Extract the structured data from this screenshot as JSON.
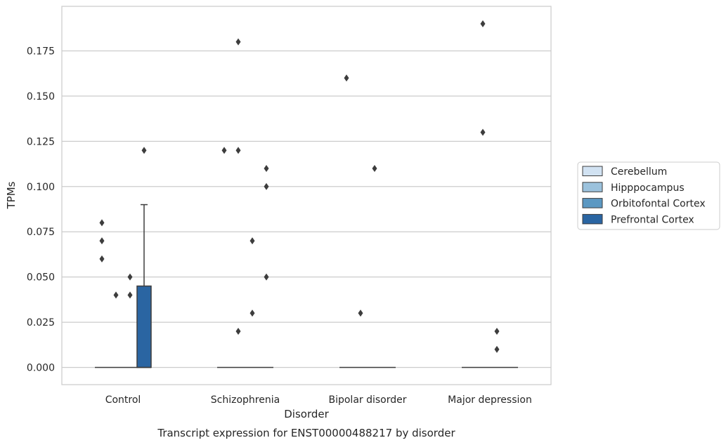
{
  "chart_data": {
    "type": "box",
    "xlabel": "Disorder",
    "ylabel": "TPMs",
    "caption": "Transcript expression for ENST00000488217 by disorder",
    "categories": [
      "Control",
      "Schizophrenia",
      "Bipolar disorder",
      "Major depression"
    ],
    "ylim": [
      -0.0095,
      0.199
    ],
    "yticks": [
      0.0,
      0.025,
      0.05,
      0.075,
      0.1,
      0.125,
      0.15,
      0.175
    ],
    "ytick_labels": [
      "0.000",
      "0.025",
      "0.050",
      "0.075",
      "0.100",
      "0.125",
      "0.150",
      "0.175"
    ],
    "grid": "horizontal",
    "legend_position": "right",
    "series": [
      {
        "name": "Cerebellum",
        "color": "#d1e2f2",
        "boxes": [
          {
            "category": "Control",
            "q1": 0,
            "median": 0,
            "q3": 0,
            "whisker_low": 0,
            "whisker_high": 0,
            "outliers": [
              0.06,
              0.07,
              0.08
            ]
          },
          {
            "category": "Schizophrenia",
            "q1": 0,
            "median": 0,
            "q3": 0,
            "whisker_low": 0,
            "whisker_high": 0,
            "outliers": [
              0.12
            ]
          },
          {
            "category": "Bipolar disorder",
            "q1": 0,
            "median": 0,
            "q3": 0,
            "whisker_low": 0,
            "whisker_high": 0,
            "outliers": [
              0.16
            ]
          },
          {
            "category": "Major depression",
            "q1": 0,
            "median": 0,
            "q3": 0,
            "whisker_low": 0,
            "whisker_high": 0,
            "outliers": []
          }
        ]
      },
      {
        "name": "Hipppocampus",
        "color": "#9bc2dd",
        "boxes": [
          {
            "category": "Control",
            "q1": 0,
            "median": 0,
            "q3": 0,
            "whisker_low": 0,
            "whisker_high": 0,
            "outliers": [
              0.04
            ]
          },
          {
            "category": "Schizophrenia",
            "q1": 0,
            "median": 0,
            "q3": 0,
            "whisker_low": 0,
            "whisker_high": 0,
            "outliers": [
              0.02,
              0.12,
              0.18
            ]
          },
          {
            "category": "Bipolar disorder",
            "q1": 0,
            "median": 0,
            "q3": 0,
            "whisker_low": 0,
            "whisker_high": 0,
            "outliers": [
              0.03
            ]
          },
          {
            "category": "Major depression",
            "q1": 0,
            "median": 0,
            "q3": 0,
            "whisker_low": 0,
            "whisker_high": 0,
            "outliers": [
              0.13,
              0.19
            ]
          }
        ]
      },
      {
        "name": "Orbitofontal Cortex",
        "color": "#5b98c2",
        "boxes": [
          {
            "category": "Control",
            "q1": 0,
            "median": 0,
            "q3": 0,
            "whisker_low": 0,
            "whisker_high": 0,
            "outliers": [
              0.04,
              0.05
            ]
          },
          {
            "category": "Schizophrenia",
            "q1": 0,
            "median": 0,
            "q3": 0,
            "whisker_low": 0,
            "whisker_high": 0,
            "outliers": [
              0.03,
              0.07
            ]
          },
          {
            "category": "Bipolar disorder",
            "q1": 0,
            "median": 0,
            "q3": 0,
            "whisker_low": 0,
            "whisker_high": 0,
            "outliers": [
              0.11
            ]
          },
          {
            "category": "Major depression",
            "q1": 0,
            "median": 0,
            "q3": 0,
            "whisker_low": 0,
            "whisker_high": 0,
            "outliers": [
              0.01,
              0.02
            ]
          }
        ]
      },
      {
        "name": "Prefrontal Cortex",
        "color": "#2a65a2",
        "boxes": [
          {
            "category": "Control",
            "q1": 0,
            "median": 0,
            "q3": 0.045,
            "whisker_low": 0,
            "whisker_high": 0.09,
            "outliers": [
              0.12
            ]
          },
          {
            "category": "Schizophrenia",
            "q1": 0,
            "median": 0,
            "q3": 0,
            "whisker_low": 0,
            "whisker_high": 0,
            "outliers": [
              0.05,
              0.1,
              0.11
            ]
          },
          {
            "category": "Bipolar disorder",
            "q1": 0,
            "median": 0,
            "q3": 0,
            "whisker_low": 0,
            "whisker_high": 0,
            "outliers": []
          },
          {
            "category": "Major depression",
            "q1": 0,
            "median": 0,
            "q3": 0,
            "whisker_low": 0,
            "whisker_high": 0,
            "outliers": []
          }
        ]
      }
    ]
  }
}
